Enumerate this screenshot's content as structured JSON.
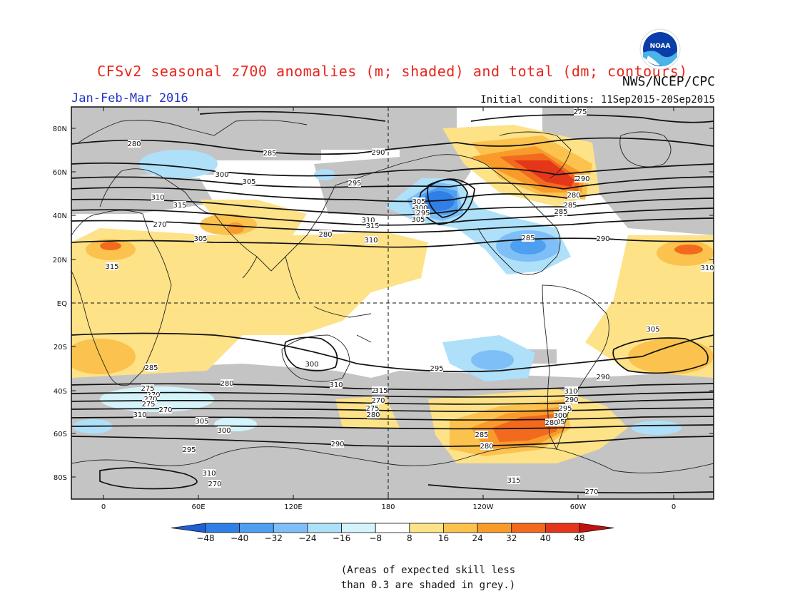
{
  "header": {
    "title": "CFSv2 seasonal z700 anomalies (m; shaded) and total (dm; contours)",
    "period": "Jan-Feb-Mar 2016",
    "agency": "NWS/NCEP/CPC",
    "initial_conditions": "Initial conditions: 11Sep2015-20Sep2015",
    "logo_text": "NOAA"
  },
  "map": {
    "lat_ticks": [
      "80N",
      "60N",
      "40N",
      "20N",
      "EQ",
      "20S",
      "40S",
      "60S",
      "80S"
    ],
    "lon_ticks": [
      "0",
      "60E",
      "120E",
      "180",
      "120W",
      "60W",
      "0"
    ],
    "contour_labels": [
      "275",
      "280",
      "285",
      "290",
      "295",
      "300",
      "305",
      "310",
      "315",
      "270",
      "275",
      "280",
      "285",
      "290",
      "295",
      "300",
      "305",
      "310",
      "315",
      "280",
      "285",
      "290",
      "305",
      "310",
      "315",
      "310",
      "305",
      "300",
      "295",
      "290",
      "285",
      "280",
      "275",
      "270",
      "270",
      "275",
      "270",
      "310",
      "305",
      "300",
      "295",
      "290",
      "285",
      "280",
      "275",
      "270",
      "275",
      "280",
      "285",
      "290",
      "295",
      "300",
      "305",
      "310",
      "315",
      "310",
      "305",
      "300",
      "295",
      "290",
      "285",
      "280",
      "315",
      "310",
      "270",
      "270",
      "275"
    ]
  },
  "colorbar": {
    "ticks": [
      "-48",
      "-40",
      "-32",
      "-24",
      "-16",
      "-8",
      "8",
      "16",
      "24",
      "32",
      "40",
      "48"
    ],
    "colors": [
      "#1f5fd6",
      "#2f7fe6",
      "#4f9ff0",
      "#7fbff7",
      "#aee0fa",
      "#d4f3fb",
      "#ffffff",
      "#fde287",
      "#fbc24e",
      "#f99b2b",
      "#f26a1e",
      "#e6361a",
      "#c41010"
    ]
  },
  "footnote": {
    "line1": "(Areas of expected skill less",
    "line2": "than 0.3 are shaded in grey.)"
  }
}
